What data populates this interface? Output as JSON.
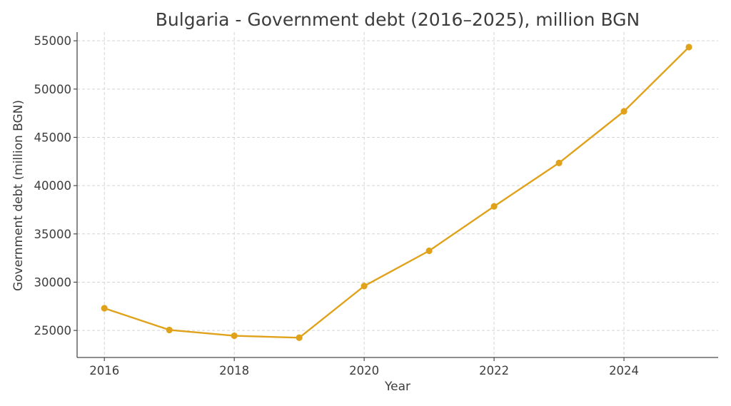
{
  "chart_data": {
    "type": "line",
    "title": "Bulgaria - Government debt (2016–2025), million BGN",
    "xlabel": "Year",
    "ylabel": "Government debt (million BGN)",
    "x": [
      2016,
      2017,
      2018,
      2019,
      2020,
      2021,
      2022,
      2023,
      2024,
      2025
    ],
    "series": [
      {
        "values": [
          27300,
          25050,
          24450,
          24250,
          29600,
          33250,
          37850,
          42350,
          47700,
          54350
        ],
        "color": "#e0a21a"
      }
    ],
    "xticks": [
      2016,
      2018,
      2020,
      2022,
      2024
    ],
    "yticks": [
      25000,
      30000,
      35000,
      40000,
      45000,
      50000,
      55000
    ],
    "xlim": [
      2015.58,
      2025.45
    ],
    "ylim": [
      22200,
      55900
    ],
    "grid": true,
    "legend": "none"
  }
}
